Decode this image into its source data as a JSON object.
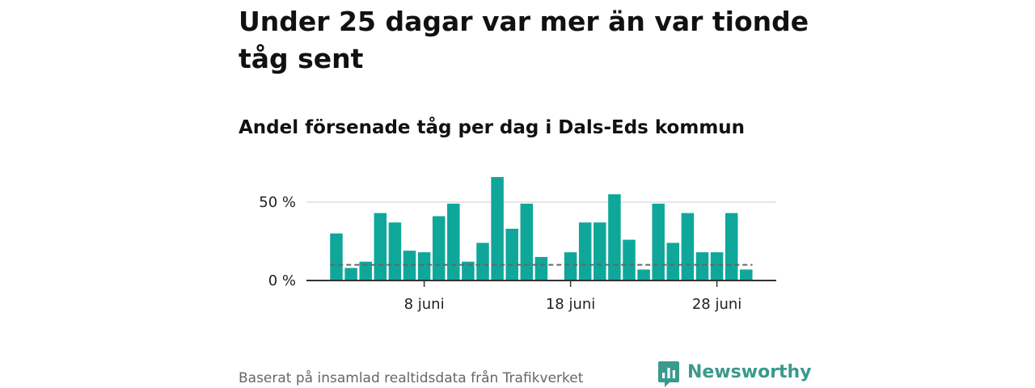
{
  "title": "Under 25 dagar var mer än var tionde tåg sent",
  "subtitle": "Andel försenade tåg per dag i Dals-Eds kommun",
  "source": "Baserat på insamlad realtidsdata från Trafikverket",
  "brand": {
    "name": "Newsworthy",
    "icon": "newsworthy-logo-icon",
    "color": "#3a9a8c"
  },
  "chart_data": {
    "type": "bar",
    "x": [
      "2 juni",
      "3 juni",
      "4 juni",
      "5 juni",
      "6 juni",
      "7 juni",
      "8 juni",
      "9 juni",
      "10 juni",
      "11 juni",
      "12 juni",
      "13 juni",
      "14 juni",
      "15 juni",
      "16 juni",
      "17 juni",
      "18 juni",
      "19 juni",
      "20 juni",
      "21 juni",
      "22 juni",
      "23 juni",
      "24 juni",
      "25 juni",
      "26 juni",
      "27 juni",
      "28 juni",
      "29 juni",
      "30 juni"
    ],
    "values": [
      30,
      8,
      12,
      43,
      37,
      19,
      18,
      41,
      49,
      12,
      24,
      66,
      33,
      49,
      15,
      null,
      18,
      37,
      37,
      55,
      26,
      7,
      49,
      24,
      43,
      18,
      18,
      43,
      7
    ],
    "unit": "%",
    "reference_line": 10,
    "ylim": [
      0,
      66
    ],
    "yticks": [
      {
        "value": 0,
        "label": "0 %"
      },
      {
        "value": 50,
        "label": "50 %"
      }
    ],
    "xticks": [
      {
        "value": "8 juni",
        "label": "8 juni"
      },
      {
        "value": "18 juni",
        "label": "18 juni"
      },
      {
        "value": "28 juni",
        "label": "28 juni"
      }
    ],
    "grid": true,
    "colors": {
      "bar": "#0fa79a",
      "reference_line": "#666666",
      "grid": "#dddddd",
      "axis": "#333333"
    }
  }
}
